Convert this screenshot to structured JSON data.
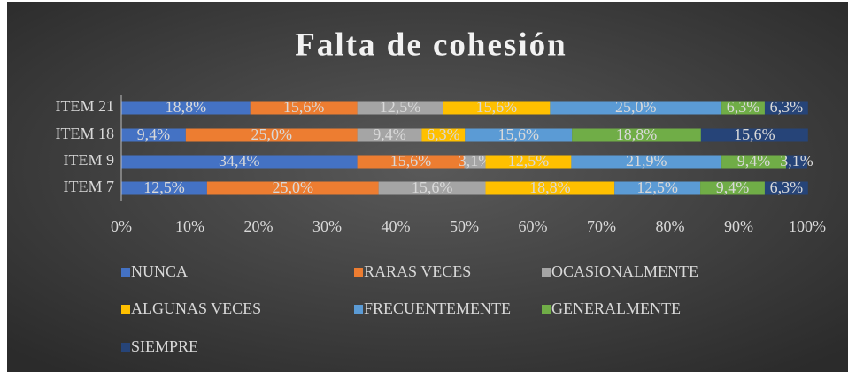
{
  "chart_data": {
    "type": "stacked-bar-horizontal",
    "title": "Falta de cohesión",
    "categories": [
      "ITEM 21",
      "ITEM 18",
      "ITEM 9",
      "ITEM 7"
    ],
    "series": [
      {
        "name": "NUNCA",
        "color": "#4472c4",
        "values": [
          18.8,
          9.4,
          34.4,
          12.5
        ],
        "value_labels": [
          "18,8%",
          "9,4%",
          "34,4%",
          "12,5%"
        ]
      },
      {
        "name": "RARAS VECES",
        "color": "#ed7d31",
        "values": [
          15.6,
          25.0,
          15.6,
          25.0
        ],
        "value_labels": [
          "15,6%",
          "25,0%",
          "15,6%",
          "25,0%"
        ]
      },
      {
        "name": "OCASIONALMENTE",
        "color": "#a5a5a5",
        "values": [
          12.5,
          9.4,
          3.1,
          15.6
        ],
        "value_labels": [
          "12,5%",
          "9,4%",
          "3,1%",
          "15,6%"
        ]
      },
      {
        "name": "ALGUNAS VECES",
        "color": "#ffc000",
        "values": [
          15.6,
          6.3,
          12.5,
          18.8
        ],
        "value_labels": [
          "15,6%",
          "6,3%",
          "12,5%",
          "18,8%"
        ]
      },
      {
        "name": "FRECUENTEMENTE",
        "color": "#5b9bd5",
        "values": [
          25.0,
          15.6,
          21.9,
          12.5
        ],
        "value_labels": [
          "25,0%",
          "15,6%",
          "21,9%",
          "12,5%"
        ]
      },
      {
        "name": "GENERALMENTE",
        "color": "#70ad47",
        "values": [
          6.3,
          18.8,
          9.4,
          9.4
        ],
        "value_labels": [
          "6,3%",
          "18,8%",
          "9,4%",
          "9,4%"
        ]
      },
      {
        "name": "SIEMPRE",
        "color": "#264478",
        "values": [
          6.3,
          15.6,
          3.1,
          6.3
        ],
        "value_labels": [
          "6,3%",
          "15,6%",
          "3,1%",
          "6,3%"
        ]
      }
    ],
    "xlim": [
      0,
      100
    ],
    "xticks": [
      {
        "value": 0,
        "label": "0%"
      },
      {
        "value": 10,
        "label": "10%"
      },
      {
        "value": 20,
        "label": "20%"
      },
      {
        "value": 30,
        "label": "30%"
      },
      {
        "value": 40,
        "label": "40%"
      },
      {
        "value": 50,
        "label": "50%"
      },
      {
        "value": 60,
        "label": "60%"
      },
      {
        "value": 70,
        "label": "70%"
      },
      {
        "value": 80,
        "label": "80%"
      },
      {
        "value": 90,
        "label": "90%"
      },
      {
        "value": 100,
        "label": "100%"
      }
    ],
    "legend": "bottom"
  }
}
